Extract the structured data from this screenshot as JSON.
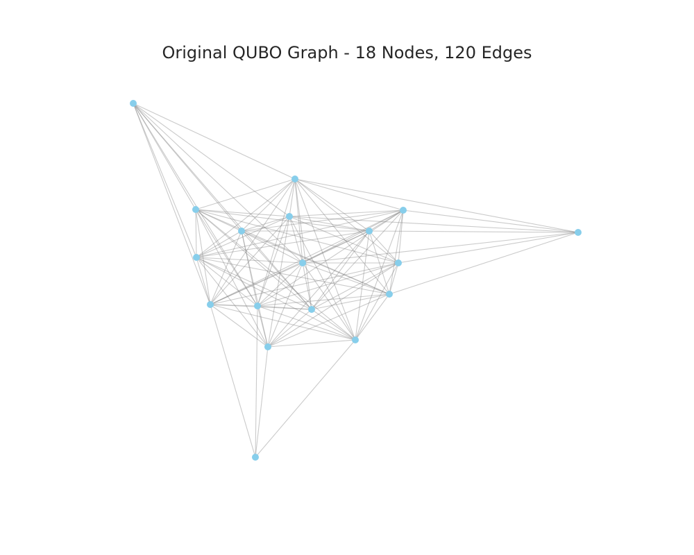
{
  "title": "Original QUBO Graph - 18 Nodes, 120 Edges",
  "colors": {
    "node": "#87CEEB",
    "edge": "#808080"
  },
  "graph": {
    "node_count": 18,
    "edge_count": 120
  }
}
